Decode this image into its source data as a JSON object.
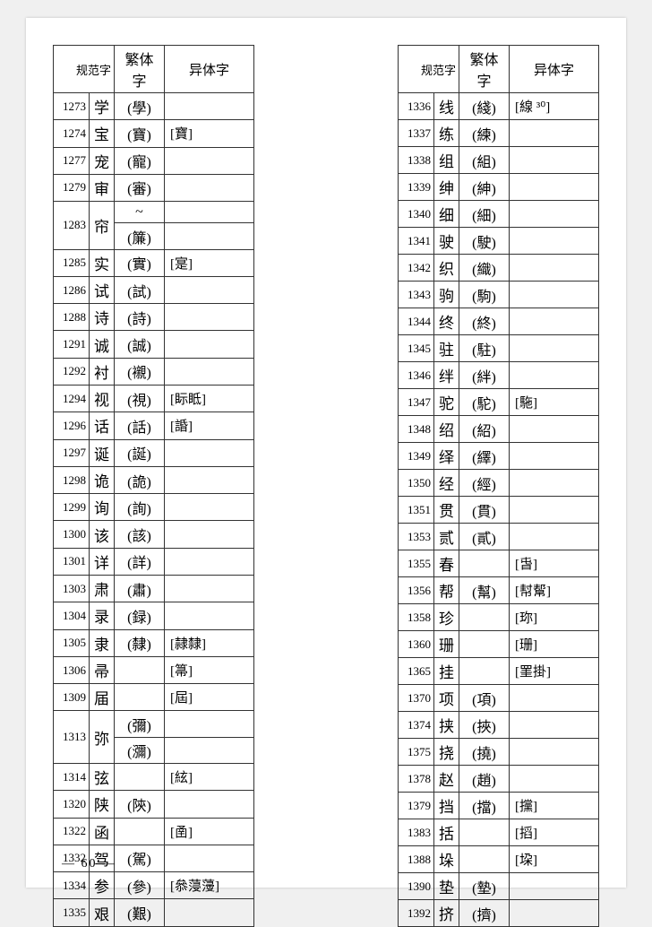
{
  "headers": {
    "gfz": "规范字",
    "ftz": "繁体字",
    "ytz": "异体字"
  },
  "left_table": [
    {
      "num": "1273",
      "gfz": "学",
      "ftz": "(學)",
      "ytz": ""
    },
    {
      "num": "1274",
      "gfz": "宝",
      "ftz": "(寶)",
      "ytz": "[寶]"
    },
    {
      "num": "1277",
      "gfz": "宠",
      "ftz": "(寵)",
      "ytz": ""
    },
    {
      "num": "1279",
      "gfz": "审",
      "ftz": "(審)",
      "ytz": ""
    },
    {
      "num": "1283",
      "gfz": "帘",
      "ftz": "~",
      "ytz": "",
      "rowspan": 2
    },
    {
      "num": "",
      "gfz": "",
      "ftz": "(簾)",
      "ytz": "",
      "merged": true
    },
    {
      "num": "1285",
      "gfz": "实",
      "ftz": "(實)",
      "ytz": "[寔]"
    },
    {
      "num": "1286",
      "gfz": "试",
      "ftz": "(試)",
      "ytz": ""
    },
    {
      "num": "1288",
      "gfz": "诗",
      "ftz": "(詩)",
      "ytz": ""
    },
    {
      "num": "1291",
      "gfz": "诚",
      "ftz": "(誠)",
      "ytz": ""
    },
    {
      "num": "1292",
      "gfz": "衬",
      "ftz": "(襯)",
      "ytz": ""
    },
    {
      "num": "1294",
      "gfz": "视",
      "ftz": "(視)",
      "ytz": "[眎眡]"
    },
    {
      "num": "1296",
      "gfz": "话",
      "ftz": "(話)",
      "ytz": "[諙]"
    },
    {
      "num": "1297",
      "gfz": "诞",
      "ftz": "(誕)",
      "ytz": ""
    },
    {
      "num": "1298",
      "gfz": "诡",
      "ftz": "(詭)",
      "ytz": ""
    },
    {
      "num": "1299",
      "gfz": "询",
      "ftz": "(詢)",
      "ytz": ""
    },
    {
      "num": "1300",
      "gfz": "该",
      "ftz": "(該)",
      "ytz": ""
    },
    {
      "num": "1301",
      "gfz": "详",
      "ftz": "(詳)",
      "ytz": ""
    },
    {
      "num": "1303",
      "gfz": "肃",
      "ftz": "(肅)",
      "ytz": ""
    },
    {
      "num": "1304",
      "gfz": "录",
      "ftz": "(録)",
      "ytz": ""
    },
    {
      "num": "1305",
      "gfz": "隶",
      "ftz": "(隸)",
      "ytz": "[隷隸]"
    },
    {
      "num": "1306",
      "gfz": "帚",
      "ftz": "",
      "ytz": "[箒]"
    },
    {
      "num": "1309",
      "gfz": "届",
      "ftz": "",
      "ytz": "[屆]"
    },
    {
      "num": "1313",
      "gfz": "弥",
      "ftz": "(彌)",
      "ytz": "",
      "rowspan": 2
    },
    {
      "num": "",
      "gfz": "",
      "ftz": "(瀰)",
      "ytz": "",
      "merged": true
    },
    {
      "num": "1314",
      "gfz": "弦",
      "ftz": "",
      "ytz": "[絃]"
    },
    {
      "num": "1320",
      "gfz": "陕",
      "ftz": "(陝)",
      "ytz": ""
    },
    {
      "num": "1322",
      "gfz": "函",
      "ftz": "",
      "ytz": "[圅]"
    },
    {
      "num": "1332",
      "gfz": "驾",
      "ftz": "(駕)",
      "ytz": ""
    },
    {
      "num": "1334",
      "gfz": "参",
      "ftz": "(參)",
      "ytz": "[叅蓡薓]"
    },
    {
      "num": "1335",
      "gfz": "艰",
      "ftz": "(艱)",
      "ytz": ""
    }
  ],
  "right_table": [
    {
      "num": "1336",
      "gfz": "线",
      "ftz": "(綫)",
      "ytz": "[線 ³⁰]"
    },
    {
      "num": "1337",
      "gfz": "练",
      "ftz": "(練)",
      "ytz": ""
    },
    {
      "num": "1338",
      "gfz": "组",
      "ftz": "(組)",
      "ytz": ""
    },
    {
      "num": "1339",
      "gfz": "绅",
      "ftz": "(紳)",
      "ytz": ""
    },
    {
      "num": "1340",
      "gfz": "细",
      "ftz": "(細)",
      "ytz": ""
    },
    {
      "num": "1341",
      "gfz": "驶",
      "ftz": "(駛)",
      "ytz": ""
    },
    {
      "num": "1342",
      "gfz": "织",
      "ftz": "(織)",
      "ytz": ""
    },
    {
      "num": "1343",
      "gfz": "驹",
      "ftz": "(駒)",
      "ytz": ""
    },
    {
      "num": "1344",
      "gfz": "终",
      "ftz": "(終)",
      "ytz": ""
    },
    {
      "num": "1345",
      "gfz": "驻",
      "ftz": "(駐)",
      "ytz": ""
    },
    {
      "num": "1346",
      "gfz": "绊",
      "ftz": "(絆)",
      "ytz": ""
    },
    {
      "num": "1347",
      "gfz": "驼",
      "ftz": "(駝)",
      "ytz": "[駞]"
    },
    {
      "num": "1348",
      "gfz": "绍",
      "ftz": "(紹)",
      "ytz": ""
    },
    {
      "num": "1349",
      "gfz": "绎",
      "ftz": "(繹)",
      "ytz": ""
    },
    {
      "num": "1350",
      "gfz": "经",
      "ftz": "(經)",
      "ytz": ""
    },
    {
      "num": "1351",
      "gfz": "贯",
      "ftz": "(貫)",
      "ytz": ""
    },
    {
      "num": "1353",
      "gfz": "贰",
      "ftz": "(貳)",
      "ytz": ""
    },
    {
      "num": "1355",
      "gfz": "春",
      "ftz": "",
      "ytz": "[旾]"
    },
    {
      "num": "1356",
      "gfz": "帮",
      "ftz": "(幫)",
      "ytz": "[幇幚]"
    },
    {
      "num": "1358",
      "gfz": "珍",
      "ftz": "",
      "ytz": "[珎]"
    },
    {
      "num": "1360",
      "gfz": "珊",
      "ftz": "",
      "ytz": "[珊]"
    },
    {
      "num": "1365",
      "gfz": "挂",
      "ftz": "",
      "ytz": "[罣掛]"
    },
    {
      "num": "1370",
      "gfz": "项",
      "ftz": "(項)",
      "ytz": ""
    },
    {
      "num": "1374",
      "gfz": "挟",
      "ftz": "(挾)",
      "ytz": ""
    },
    {
      "num": "1375",
      "gfz": "挠",
      "ftz": "(撓)",
      "ytz": ""
    },
    {
      "num": "1378",
      "gfz": "赵",
      "ftz": "(趙)",
      "ytz": ""
    },
    {
      "num": "1379",
      "gfz": "挡",
      "ftz": "(擋)",
      "ytz": "[攩]"
    },
    {
      "num": "1383",
      "gfz": "括",
      "ftz": "",
      "ytz": "[搯]"
    },
    {
      "num": "1388",
      "gfz": "垛",
      "ftz": "",
      "ytz": "[垜]"
    },
    {
      "num": "1390",
      "gfz": "垫",
      "ftz": "(墊)",
      "ytz": ""
    },
    {
      "num": "1392",
      "gfz": "挤",
      "ftz": "(擠)",
      "ytz": ""
    }
  ],
  "page_number": "60",
  "colors": {
    "border": "#333333",
    "bg": "#ffffff",
    "page_bg": "#f0f0f0"
  }
}
